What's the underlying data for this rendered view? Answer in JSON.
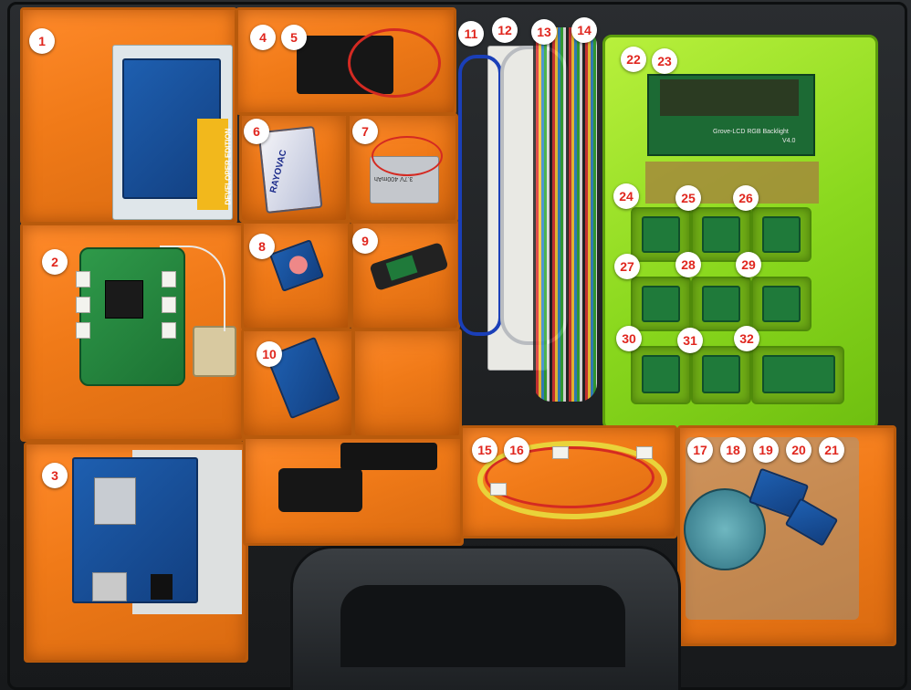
{
  "photo": {
    "markers": [
      "1",
      "2",
      "3",
      "4",
      "5",
      "6",
      "7",
      "8",
      "9",
      "10",
      "11",
      "12",
      "13",
      "14",
      "15",
      "16",
      "17",
      "18",
      "19",
      "20",
      "21",
      "22",
      "23",
      "24",
      "25",
      "26",
      "27",
      "28",
      "29",
      "30",
      "31",
      "32"
    ],
    "box_texts": {
      "dev_edition": "DEVELOPER EDITION",
      "battery_brand": "RAYOVAC",
      "lipo_label": "3.7V 400mAh",
      "lcd_label": "Grove-LCD RGB Backlight",
      "lcd_version": "V4.0"
    },
    "colors": {
      "bin_orange": "#f07a18",
      "grove_box_green": "#8ad81e",
      "marker_text": "#e0261e",
      "case_black": "#1e2022"
    }
  }
}
